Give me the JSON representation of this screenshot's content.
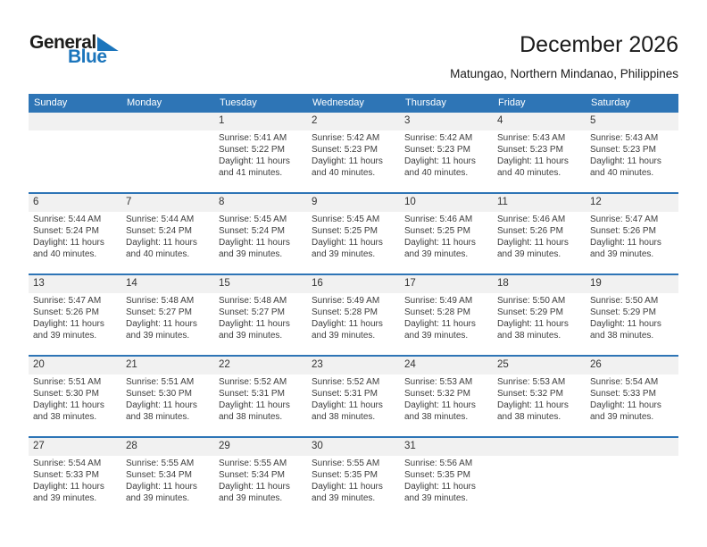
{
  "logo": {
    "line1": "General",
    "line2": "Blue"
  },
  "title": "December 2026",
  "subtitle": "Matungao, Northern Mindanao, Philippines",
  "weekdays": [
    "Sunday",
    "Monday",
    "Tuesday",
    "Wednesday",
    "Thursday",
    "Friday",
    "Saturday"
  ],
  "colors": {
    "header_blue": "#2E75B6",
    "row_separator_blue": "#2E75B6",
    "day_number_strip_gray": "#F1F1F1",
    "logo_blue": "#1B75BC"
  },
  "weeks": [
    [
      null,
      null,
      {
        "day": "1",
        "lines": [
          "Sunrise: 5:41 AM",
          "Sunset: 5:22 PM",
          "Daylight: 11 hours",
          "and 41 minutes."
        ]
      },
      {
        "day": "2",
        "lines": [
          "Sunrise: 5:42 AM",
          "Sunset: 5:23 PM",
          "Daylight: 11 hours",
          "and 40 minutes."
        ]
      },
      {
        "day": "3",
        "lines": [
          "Sunrise: 5:42 AM",
          "Sunset: 5:23 PM",
          "Daylight: 11 hours",
          "and 40 minutes."
        ]
      },
      {
        "day": "4",
        "lines": [
          "Sunrise: 5:43 AM",
          "Sunset: 5:23 PM",
          "Daylight: 11 hours",
          "and 40 minutes."
        ]
      },
      {
        "day": "5",
        "lines": [
          "Sunrise: 5:43 AM",
          "Sunset: 5:23 PM",
          "Daylight: 11 hours",
          "and 40 minutes."
        ]
      }
    ],
    [
      {
        "day": "6",
        "lines": [
          "Sunrise: 5:44 AM",
          "Sunset: 5:24 PM",
          "Daylight: 11 hours",
          "and 40 minutes."
        ]
      },
      {
        "day": "7",
        "lines": [
          "Sunrise: 5:44 AM",
          "Sunset: 5:24 PM",
          "Daylight: 11 hours",
          "and 40 minutes."
        ]
      },
      {
        "day": "8",
        "lines": [
          "Sunrise: 5:45 AM",
          "Sunset: 5:24 PM",
          "Daylight: 11 hours",
          "and 39 minutes."
        ]
      },
      {
        "day": "9",
        "lines": [
          "Sunrise: 5:45 AM",
          "Sunset: 5:25 PM",
          "Daylight: 11 hours",
          "and 39 minutes."
        ]
      },
      {
        "day": "10",
        "lines": [
          "Sunrise: 5:46 AM",
          "Sunset: 5:25 PM",
          "Daylight: 11 hours",
          "and 39 minutes."
        ]
      },
      {
        "day": "11",
        "lines": [
          "Sunrise: 5:46 AM",
          "Sunset: 5:26 PM",
          "Daylight: 11 hours",
          "and 39 minutes."
        ]
      },
      {
        "day": "12",
        "lines": [
          "Sunrise: 5:47 AM",
          "Sunset: 5:26 PM",
          "Daylight: 11 hours",
          "and 39 minutes."
        ]
      }
    ],
    [
      {
        "day": "13",
        "lines": [
          "Sunrise: 5:47 AM",
          "Sunset: 5:26 PM",
          "Daylight: 11 hours",
          "and 39 minutes."
        ]
      },
      {
        "day": "14",
        "lines": [
          "Sunrise: 5:48 AM",
          "Sunset: 5:27 PM",
          "Daylight: 11 hours",
          "and 39 minutes."
        ]
      },
      {
        "day": "15",
        "lines": [
          "Sunrise: 5:48 AM",
          "Sunset: 5:27 PM",
          "Daylight: 11 hours",
          "and 39 minutes."
        ]
      },
      {
        "day": "16",
        "lines": [
          "Sunrise: 5:49 AM",
          "Sunset: 5:28 PM",
          "Daylight: 11 hours",
          "and 39 minutes."
        ]
      },
      {
        "day": "17",
        "lines": [
          "Sunrise: 5:49 AM",
          "Sunset: 5:28 PM",
          "Daylight: 11 hours",
          "and 39 minutes."
        ]
      },
      {
        "day": "18",
        "lines": [
          "Sunrise: 5:50 AM",
          "Sunset: 5:29 PM",
          "Daylight: 11 hours",
          "and 38 minutes."
        ]
      },
      {
        "day": "19",
        "lines": [
          "Sunrise: 5:50 AM",
          "Sunset: 5:29 PM",
          "Daylight: 11 hours",
          "and 38 minutes."
        ]
      }
    ],
    [
      {
        "day": "20",
        "lines": [
          "Sunrise: 5:51 AM",
          "Sunset: 5:30 PM",
          "Daylight: 11 hours",
          "and 38 minutes."
        ]
      },
      {
        "day": "21",
        "lines": [
          "Sunrise: 5:51 AM",
          "Sunset: 5:30 PM",
          "Daylight: 11 hours",
          "and 38 minutes."
        ]
      },
      {
        "day": "22",
        "lines": [
          "Sunrise: 5:52 AM",
          "Sunset: 5:31 PM",
          "Daylight: 11 hours",
          "and 38 minutes."
        ]
      },
      {
        "day": "23",
        "lines": [
          "Sunrise: 5:52 AM",
          "Sunset: 5:31 PM",
          "Daylight: 11 hours",
          "and 38 minutes."
        ]
      },
      {
        "day": "24",
        "lines": [
          "Sunrise: 5:53 AM",
          "Sunset: 5:32 PM",
          "Daylight: 11 hours",
          "and 38 minutes."
        ]
      },
      {
        "day": "25",
        "lines": [
          "Sunrise: 5:53 AM",
          "Sunset: 5:32 PM",
          "Daylight: 11 hours",
          "and 38 minutes."
        ]
      },
      {
        "day": "26",
        "lines": [
          "Sunrise: 5:54 AM",
          "Sunset: 5:33 PM",
          "Daylight: 11 hours",
          "and 39 minutes."
        ]
      }
    ],
    [
      {
        "day": "27",
        "lines": [
          "Sunrise: 5:54 AM",
          "Sunset: 5:33 PM",
          "Daylight: 11 hours",
          "and 39 minutes."
        ]
      },
      {
        "day": "28",
        "lines": [
          "Sunrise: 5:55 AM",
          "Sunset: 5:34 PM",
          "Daylight: 11 hours",
          "and 39 minutes."
        ]
      },
      {
        "day": "29",
        "lines": [
          "Sunrise: 5:55 AM",
          "Sunset: 5:34 PM",
          "Daylight: 11 hours",
          "and 39 minutes."
        ]
      },
      {
        "day": "30",
        "lines": [
          "Sunrise: 5:55 AM",
          "Sunset: 5:35 PM",
          "Daylight: 11 hours",
          "and 39 minutes."
        ]
      },
      {
        "day": "31",
        "lines": [
          "Sunrise: 5:56 AM",
          "Sunset: 5:35 PM",
          "Daylight: 11 hours",
          "and 39 minutes."
        ]
      },
      null,
      null
    ]
  ]
}
